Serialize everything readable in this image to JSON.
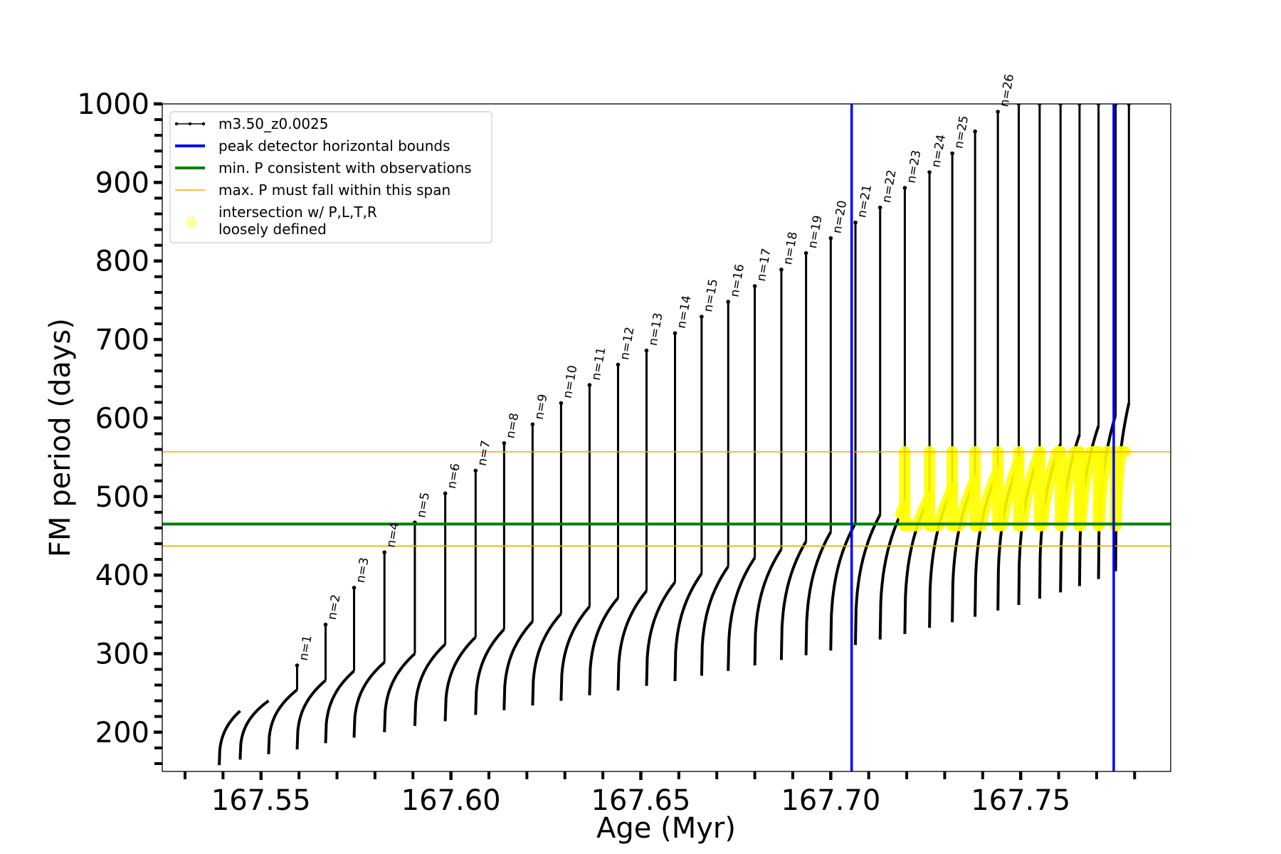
{
  "chart_data": {
    "type": "line",
    "xlabel": "Age (Myr)",
    "ylabel": "FM period (days)",
    "xlim": [
      167.524,
      167.7895
    ],
    "ylim": [
      150,
      1000
    ],
    "x_ticks": [
      167.55,
      167.6,
      167.65,
      167.7,
      167.75
    ],
    "x_tick_labels": [
      "167.55",
      "167.60",
      "167.65",
      "167.70",
      "167.75"
    ],
    "y_ticks": [
      200,
      300,
      400,
      500,
      600,
      700,
      800,
      900,
      1000
    ],
    "y_tick_labels": [
      "200",
      "300",
      "400",
      "500",
      "600",
      "700",
      "800",
      "900",
      "1000"
    ],
    "legend_position": "top-left",
    "legend": [
      {
        "label": "m3.50_z0.0025",
        "color": "#000000",
        "kind": "line-marker"
      },
      {
        "label": "peak detector horizontal bounds",
        "color": "#0000ff",
        "kind": "line"
      },
      {
        "label": "min. P consistent with observations",
        "color": "#008000",
        "kind": "line"
      },
      {
        "label": "max. P must fall within this span",
        "color": "#ffa500",
        "kind": "thin-line"
      },
      {
        "label_lines": [
          "intersection w/ P,L,T,R",
          "loosely defined"
        ],
        "color": "#ffff00",
        "kind": "dot"
      }
    ],
    "vertical_lines": {
      "color": "#0000ff",
      "x": [
        167.7055,
        167.7745
      ]
    },
    "min_period_line": {
      "color": "#008000",
      "y": 465
    },
    "max_period_span": {
      "color": "#ffa500",
      "y": [
        437,
        557
      ]
    },
    "series": [
      {
        "name": "m3.50_z0.0025",
        "color": "#000000",
        "cycles": [
          {
            "x0": 167.539,
            "x1": 167.5445,
            "min": 158,
            "max": 227
          },
          {
            "x0": 167.5445,
            "x1": 167.552,
            "min": 165,
            "max": 240
          },
          {
            "x0": 167.552,
            "x1": 167.5595,
            "min": 172,
            "max": 254,
            "peak": 285,
            "label": "n=1"
          },
          {
            "x0": 167.5595,
            "x1": 167.567,
            "min": 178,
            "max": 266,
            "peak": 337,
            "label": "n=2"
          },
          {
            "x0": 167.567,
            "x1": 167.5745,
            "min": 186,
            "max": 278,
            "peak": 384,
            "label": "n=3"
          },
          {
            "x0": 167.5745,
            "x1": 167.5825,
            "min": 193,
            "max": 289,
            "peak": 429,
            "label": "n=4"
          },
          {
            "x0": 167.5825,
            "x1": 167.5905,
            "min": 200,
            "max": 300,
            "peak": 467,
            "label": "n=5"
          },
          {
            "x0": 167.5905,
            "x1": 167.5985,
            "min": 208,
            "max": 312,
            "peak": 504,
            "label": "n=6"
          },
          {
            "x0": 167.5985,
            "x1": 167.6065,
            "min": 214,
            "max": 321,
            "peak": 533,
            "label": "n=7"
          },
          {
            "x0": 167.6065,
            "x1": 167.614,
            "min": 222,
            "max": 331,
            "peak": 568,
            "label": "n=8"
          },
          {
            "x0": 167.614,
            "x1": 167.6215,
            "min": 228,
            "max": 341,
            "peak": 592,
            "label": "n=9"
          },
          {
            "x0": 167.6215,
            "x1": 167.629,
            "min": 234,
            "max": 351,
            "peak": 619,
            "label": "n=10"
          },
          {
            "x0": 167.629,
            "x1": 167.6365,
            "min": 240,
            "max": 360,
            "peak": 642,
            "label": "n=11"
          },
          {
            "x0": 167.6365,
            "x1": 167.644,
            "min": 247,
            "max": 371,
            "peak": 668,
            "label": "n=12"
          },
          {
            "x0": 167.644,
            "x1": 167.6515,
            "min": 253,
            "max": 380,
            "peak": 686,
            "label": "n=13"
          },
          {
            "x0": 167.6515,
            "x1": 167.659,
            "min": 259,
            "max": 391,
            "peak": 708,
            "label": "n=14"
          },
          {
            "x0": 167.659,
            "x1": 167.666,
            "min": 265,
            "max": 402,
            "peak": 729,
            "label": "n=15"
          },
          {
            "x0": 167.666,
            "x1": 167.673,
            "min": 272,
            "max": 411,
            "peak": 748,
            "label": "n=16"
          },
          {
            "x0": 167.673,
            "x1": 167.68,
            "min": 278,
            "max": 422,
            "peak": 768,
            "label": "n=17"
          },
          {
            "x0": 167.68,
            "x1": 167.687,
            "min": 285,
            "max": 433,
            "peak": 789,
            "label": "n=18"
          },
          {
            "x0": 167.687,
            "x1": 167.6935,
            "min": 292,
            "max": 443,
            "peak": 810,
            "label": "n=19"
          },
          {
            "x0": 167.6935,
            "x1": 167.7,
            "min": 298,
            "max": 455,
            "peak": 829,
            "label": "n=20"
          },
          {
            "x0": 167.7,
            "x1": 167.7065,
            "min": 304,
            "max": 466,
            "peak": 849,
            "label": "n=21"
          },
          {
            "x0": 167.7065,
            "x1": 167.713,
            "min": 311,
            "max": 477,
            "peak": 868,
            "label": "n=22"
          },
          {
            "x0": 167.713,
            "x1": 167.7195,
            "min": 318,
            "max": 488,
            "peak": 893,
            "label": "n=23"
          },
          {
            "x0": 167.7195,
            "x1": 167.726,
            "min": 325,
            "max": 499,
            "peak": 913,
            "label": "n=24"
          },
          {
            "x0": 167.726,
            "x1": 167.732,
            "min": 333,
            "max": 510,
            "peak": 937,
            "label": "n=25"
          },
          {
            "x0": 167.732,
            "x1": 167.738,
            "min": 340,
            "max": 521,
            "peak": 965
          },
          {
            "x0": 167.738,
            "x1": 167.744,
            "min": 347,
            "max": 532,
            "peak": 990,
            "label": "n=26"
          },
          {
            "x0": 167.744,
            "x1": 167.7495,
            "min": 355,
            "max": 544,
            "peak": 1000
          },
          {
            "x0": 167.7495,
            "x1": 167.755,
            "min": 362,
            "max": 555,
            "peak": 1000
          },
          {
            "x0": 167.755,
            "x1": 167.7605,
            "min": 370,
            "max": 567,
            "peak": 1000
          },
          {
            "x0": 167.7605,
            "x1": 167.7655,
            "min": 378,
            "max": 579,
            "peak": 1000
          },
          {
            "x0": 167.7655,
            "x1": 167.7705,
            "min": 386,
            "max": 590,
            "peak": 1000
          },
          {
            "x0": 167.7705,
            "x1": 167.775,
            "min": 395,
            "max": 604,
            "peak": 1000
          },
          {
            "x0": 167.775,
            "x1": 167.7785,
            "min": 405,
            "max": 619,
            "peak": 1000
          }
        ]
      },
      {
        "name": "intersection w/ P,L,T,R loosely defined",
        "color": "#ffff00",
        "x_range": [
          167.7185,
          167.7775
        ],
        "y_range": [
          463,
          557
        ]
      }
    ]
  }
}
